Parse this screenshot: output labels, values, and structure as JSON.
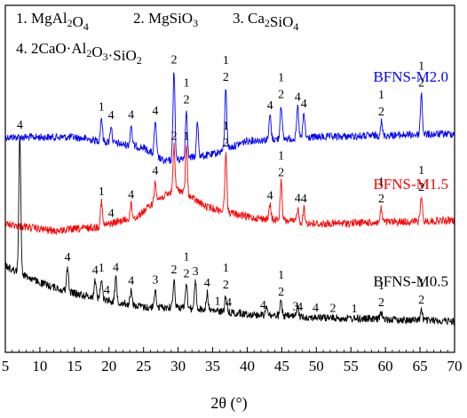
{
  "chart_data": {
    "type": "line",
    "xlabel": "2θ (°)",
    "ylabel": "",
    "xlim": [
      5,
      70
    ],
    "x_ticks": [
      5,
      10,
      15,
      20,
      25,
      30,
      35,
      40,
      45,
      50,
      55,
      60,
      65,
      70
    ],
    "y_ticks_shown": false,
    "grid": false,
    "phase_legend": {
      "row1": [
        {
          "num": "1.",
          "text": "MgAl",
          "sub": "2",
          "after": "O",
          "sub2": "4"
        },
        {
          "num": "2.",
          "text": "MgSiO",
          "sub": "3"
        },
        {
          "num": "3.",
          "text": "Ca",
          "sub": "2",
          "after": "SiO",
          "sub2": "4"
        }
      ],
      "row2": {
        "num": "4.",
        "text": "2CaO·Al",
        "sub": "2",
        "after": "O",
        "sub2": "3",
        "after2": "·SiO",
        "sub3": "2"
      }
    },
    "series": [
      {
        "name": "BFNS-M2.0",
        "color": "#0000ff",
        "baseline": [
          [
            5,
            0.38
          ],
          [
            15,
            0.38
          ],
          [
            25,
            0.41
          ],
          [
            28,
            0.45
          ],
          [
            35,
            0.43
          ],
          [
            40,
            0.39
          ],
          [
            50,
            0.38
          ],
          [
            70,
            0.37
          ]
        ],
        "peaks": [
          {
            "x": 18.9,
            "h": 0.07
          },
          {
            "x": 20.3,
            "h": 0.05
          },
          {
            "x": 23.2,
            "h": 0.06
          },
          {
            "x": 26.7,
            "h": 0.1
          },
          {
            "x": 29.4,
            "h": 0.26
          },
          {
            "x": 31.2,
            "h": 0.14
          },
          {
            "x": 32.8,
            "h": 0.1
          },
          {
            "x": 36.9,
            "h": 0.18
          },
          {
            "x": 43.3,
            "h": 0.07
          },
          {
            "x": 44.9,
            "h": 0.1
          },
          {
            "x": 47.3,
            "h": 0.09
          },
          {
            "x": 48.2,
            "h": 0.07
          },
          {
            "x": 59.4,
            "h": 0.04
          },
          {
            "x": 65.2,
            "h": 0.12
          }
        ],
        "peak_labels": [
          {
            "x": 18.9,
            "lines": [
              "1"
            ]
          },
          {
            "x": 20.3,
            "lines": [
              "4"
            ]
          },
          {
            "x": 23.2,
            "lines": [
              "4"
            ]
          },
          {
            "x": 26.7,
            "lines": [
              "4"
            ]
          },
          {
            "x": 29.4,
            "lines": [
              "2"
            ]
          },
          {
            "x": 31.2,
            "lines": [
              "1",
              "2"
            ]
          },
          {
            "x": 36.9,
            "lines": [
              "1",
              "2"
            ]
          },
          {
            "x": 43.3,
            "lines": [
              "4"
            ]
          },
          {
            "x": 44.9,
            "lines": [
              "1",
              "2"
            ]
          },
          {
            "x": 47.3,
            "lines": [
              "4"
            ]
          },
          {
            "x": 48.2,
            "lines": [
              "4"
            ]
          },
          {
            "x": 59.4,
            "lines": [
              "1",
              "2"
            ]
          },
          {
            "x": 65.2,
            "lines": [
              "1",
              "2"
            ]
          }
        ]
      },
      {
        "name": "BFNS-M1.5",
        "color": "#ff0000",
        "baseline": [
          [
            5,
            0.63
          ],
          [
            12,
            0.65
          ],
          [
            18,
            0.64
          ],
          [
            24,
            0.61
          ],
          [
            27,
            0.56
          ],
          [
            30,
            0.53
          ],
          [
            34,
            0.58
          ],
          [
            40,
            0.61
          ],
          [
            50,
            0.63
          ],
          [
            70,
            0.62
          ]
        ],
        "peaks": [
          {
            "x": 18.9,
            "h": 0.07
          },
          {
            "x": 23.2,
            "h": 0.04
          },
          {
            "x": 26.7,
            "h": 0.06
          },
          {
            "x": 29.4,
            "h": 0.13
          },
          {
            "x": 31.2,
            "h": 0.14
          },
          {
            "x": 36.9,
            "h": 0.17
          },
          {
            "x": 43.3,
            "h": 0.04
          },
          {
            "x": 44.9,
            "h": 0.11
          },
          {
            "x": 47.3,
            "h": 0.04
          },
          {
            "x": 48.2,
            "h": 0.04
          },
          {
            "x": 59.4,
            "h": 0.04
          },
          {
            "x": 65.2,
            "h": 0.07
          }
        ],
        "peak_labels": [
          {
            "x": 18.9,
            "lines": [
              "1"
            ]
          },
          {
            "x": 20.3,
            "lines": [
              "4"
            ]
          },
          {
            "x": 23.2,
            "lines": [
              "4"
            ]
          },
          {
            "x": 26.7,
            "lines": [
              "4"
            ]
          },
          {
            "x": 29.4,
            "lines": [
              "2"
            ]
          },
          {
            "x": 31.2,
            "lines": [
              "1"
            ]
          },
          {
            "x": 36.9,
            "lines": [
              "1",
              "2"
            ]
          },
          {
            "x": 43.3,
            "lines": [
              "4"
            ]
          },
          {
            "x": 44.9,
            "lines": [
              "1",
              "2"
            ]
          },
          {
            "x": 47.3,
            "lines": [
              "4"
            ]
          },
          {
            "x": 48.2,
            "lines": [
              "4"
            ]
          },
          {
            "x": 59.4,
            "lines": [
              "1",
              "2"
            ]
          },
          {
            "x": 65.2,
            "lines": [
              "1",
              "2"
            ]
          }
        ]
      },
      {
        "name": "BFNS-M0.5",
        "color": "#000000",
        "baseline": [
          [
            5,
            0.75
          ],
          [
            7,
            0.77
          ],
          [
            10,
            0.8
          ],
          [
            15,
            0.83
          ],
          [
            20,
            0.85
          ],
          [
            25,
            0.87
          ],
          [
            30,
            0.87
          ],
          [
            35,
            0.88
          ],
          [
            40,
            0.89
          ],
          [
            50,
            0.9
          ],
          [
            70,
            0.91
          ]
        ],
        "peaks": [
          {
            "x": 7.1,
            "h": 0.4
          },
          {
            "x": 14.0,
            "h": 0.07
          },
          {
            "x": 18.0,
            "h": 0.05
          },
          {
            "x": 18.9,
            "h": 0.06
          },
          {
            "x": 21.0,
            "h": 0.07
          },
          {
            "x": 23.2,
            "h": 0.04
          },
          {
            "x": 26.7,
            "h": 0.05
          },
          {
            "x": 29.4,
            "h": 0.08
          },
          {
            "x": 31.2,
            "h": 0.07
          },
          {
            "x": 32.5,
            "h": 0.08
          },
          {
            "x": 34.2,
            "h": 0.05
          },
          {
            "x": 36.9,
            "h": 0.05
          },
          {
            "x": 42.8,
            "h": 0.03
          },
          {
            "x": 44.9,
            "h": 0.04
          },
          {
            "x": 47.3,
            "h": 0.03
          },
          {
            "x": 59.4,
            "h": 0.02
          },
          {
            "x": 65.2,
            "h": 0.03
          }
        ],
        "peak_labels": [
          {
            "x": 7.1,
            "lines": [
              "4"
            ],
            "label_y": 0.355
          },
          {
            "x": 14.0,
            "lines": [
              "4"
            ]
          },
          {
            "x": 18.0,
            "lines": [
              "4"
            ]
          },
          {
            "x": 18.9,
            "lines": [
              "1"
            ]
          },
          {
            "x": 19.7,
            "lines": [
              "4"
            ]
          },
          {
            "x": 21.0,
            "lines": [
              "4"
            ]
          },
          {
            "x": 23.2,
            "lines": [
              "4"
            ]
          },
          {
            "x": 26.7,
            "lines": [
              "3"
            ]
          },
          {
            "x": 29.4,
            "lines": [
              "2"
            ]
          },
          {
            "x": 31.2,
            "lines": [
              "1",
              "2"
            ]
          },
          {
            "x": 32.5,
            "lines": [
              "3"
            ]
          },
          {
            "x": 34.2,
            "lines": [
              "4"
            ]
          },
          {
            "x": 35.7,
            "lines": [
              "1"
            ]
          },
          {
            "x": 36.9,
            "lines": [
              "1",
              "2"
            ]
          },
          {
            "x": 37.3,
            "lines": [
              "4"
            ]
          },
          {
            "x": 42.3,
            "lines": [
              "4"
            ]
          },
          {
            "x": 44.9,
            "lines": [
              "1",
              "2"
            ]
          },
          {
            "x": 47.0,
            "lines": [
              "3"
            ]
          },
          {
            "x": 47.6,
            "lines": [
              "4"
            ]
          },
          {
            "x": 49.9,
            "lines": [
              "4"
            ]
          },
          {
            "x": 52.4,
            "lines": [
              "2"
            ]
          },
          {
            "x": 55.5,
            "lines": [
              "1"
            ]
          },
          {
            "x": 59.4,
            "lines": [
              "1",
              "2"
            ]
          },
          {
            "x": 65.2,
            "lines": [
              "1",
              "2"
            ]
          }
        ]
      }
    ]
  }
}
